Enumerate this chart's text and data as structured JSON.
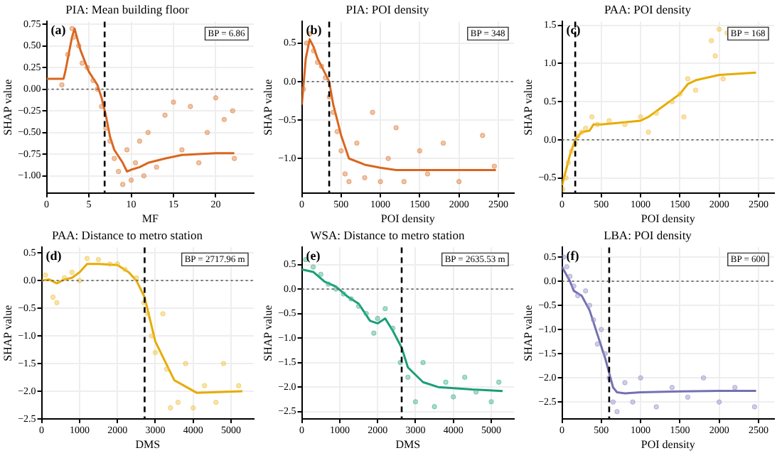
{
  "chart_data": [
    {
      "type": "scatter",
      "title": "PIA: Mean building floor",
      "xlabel": "MF",
      "ylabel": "SHAP value",
      "annotations": [
        "(a)",
        "BP = 6.86"
      ],
      "grid": true,
      "legend": false,
      "xlim": [
        0,
        24.5
      ],
      "xticks": [
        0,
        5,
        10,
        15,
        20
      ],
      "ylim": [
        -1.2,
        0.78
      ],
      "yticks": [
        {
          "value": -1,
          "label": "−1.00"
        },
        {
          "value": -0.75,
          "label": "−0.75"
        },
        {
          "value": -0.5,
          "label": "−0.50"
        },
        {
          "value": -0.25,
          "label": "−0.25"
        },
        {
          "value": 0,
          "label": "0.00"
        },
        {
          "value": 0.25,
          "label": "0.25"
        },
        {
          "value": 0.5,
          "label": "0.50"
        },
        {
          "value": 0.75,
          "label": "0.75"
        }
      ],
      "ref_lines": [
        {
          "axis": "x",
          "value": 6.86,
          "color": "#000000",
          "line_style": "dashed"
        },
        {
          "axis": "y",
          "value": 0,
          "color": "#666666",
          "line_style": "dotted"
        }
      ],
      "series": [
        {
          "marker": "circle",
          "color": "#e07b39",
          "x": [
            1.8,
            2.5,
            3,
            3.2,
            3.8,
            4.2,
            4.8,
            5.5,
            6,
            6.5,
            7,
            7.5,
            8,
            8.5,
            9,
            9.5,
            10,
            10.5,
            11,
            11.5,
            12,
            13,
            14,
            15,
            16,
            17,
            18,
            19,
            20,
            21,
            22,
            22.2
          ],
          "values": [
            0.05,
            0.4,
            0.7,
            0.6,
            0.5,
            0.3,
            0.25,
            0.1,
            0,
            -0.2,
            -0.45,
            -0.6,
            -0.8,
            -0.95,
            -1.1,
            -0.7,
            -1.05,
            -0.85,
            -0.6,
            -1,
            -0.5,
            -0.9,
            -0.3,
            -0.15,
            -0.7,
            -0.2,
            -0.85,
            -0.5,
            -0.1,
            -0.35,
            -0.25,
            -0.8
          ]
        },
        {
          "type": "line",
          "marker": "none",
          "color": "#d9661f",
          "x": [
            0,
            2,
            2.2,
            3,
            3.3,
            4,
            5,
            6,
            6.5,
            7,
            7.5,
            8,
            9,
            9.5,
            10,
            11,
            12,
            14,
            16,
            18,
            20,
            22.2
          ],
          "values": [
            0.12,
            0.12,
            0.2,
            0.6,
            0.7,
            0.45,
            0.2,
            0.05,
            -0.1,
            -0.3,
            -0.55,
            -0.7,
            -0.85,
            -0.95,
            -0.93,
            -0.9,
            -0.85,
            -0.8,
            -0.76,
            -0.75,
            -0.74,
            -0.74
          ]
        }
      ]
    },
    {
      "type": "scatter",
      "title": "PIA: POI density",
      "xlabel": "POI density",
      "ylabel": "SHAP value",
      "annotations": [
        "(b)",
        "BP = 348"
      ],
      "grid": true,
      "legend": false,
      "xlim": [
        0,
        2700
      ],
      "xticks": [
        0,
        500,
        1000,
        1500,
        2000,
        2500
      ],
      "ylim": [
        -1.45,
        0.78
      ],
      "yticks": [
        {
          "value": -1,
          "label": "−1.0"
        },
        {
          "value": -0.5,
          "label": "−0.5"
        },
        {
          "value": 0,
          "label": "0.0"
        },
        {
          "value": 0.5,
          "label": "0.5"
        }
      ],
      "ref_lines": [
        {
          "axis": "x",
          "value": 348,
          "color": "#000000",
          "line_style": "dashed"
        },
        {
          "axis": "y",
          "value": 0,
          "color": "#666666",
          "line_style": "dotted"
        }
      ],
      "series": [
        {
          "marker": "circle",
          "color": "#e07b39",
          "x": [
            20,
            60,
            100,
            150,
            200,
            250,
            300,
            350,
            400,
            450,
            500,
            550,
            600,
            700,
            800,
            900,
            1000,
            1100,
            1200,
            1300,
            1500,
            1600,
            1800,
            2000,
            2300,
            2450
          ],
          "values": [
            -0.1,
            0.5,
            0.62,
            0.4,
            0.25,
            0.2,
            0.05,
            -0.2,
            -0.4,
            -0.65,
            -0.9,
            -1.2,
            -1.3,
            -0.8,
            -1.25,
            -0.4,
            -1.3,
            -1,
            -0.6,
            -1.3,
            -0.9,
            -1.2,
            -0.8,
            -1.3,
            -0.7,
            -1.1
          ]
        },
        {
          "type": "line",
          "marker": "none",
          "color": "#d9661f",
          "x": [
            0,
            50,
            100,
            150,
            200,
            300,
            348,
            400,
            500,
            600,
            800,
            1000,
            1200,
            1500,
            2000,
            2470
          ],
          "values": [
            -0.3,
            0.3,
            0.55,
            0.45,
            0.3,
            0.1,
            0,
            -0.3,
            -0.7,
            -1,
            -1.08,
            -1.12,
            -1.15,
            -1.15,
            -1.15,
            -1.15
          ]
        }
      ]
    },
    {
      "type": "scatter",
      "title": "PAA: POI density",
      "xlabel": "POI density",
      "ylabel": "SHAP value",
      "annotations": [
        "(c)",
        "BP = 168"
      ],
      "grid": true,
      "legend": false,
      "xlim": [
        0,
        2700
      ],
      "xticks": [
        0,
        500,
        1000,
        1500,
        2000,
        2500
      ],
      "ylim": [
        -0.7,
        1.55
      ],
      "yticks": [
        {
          "value": -0.5,
          "label": "−0.5"
        },
        {
          "value": 0,
          "label": "0.0"
        },
        {
          "value": 0.5,
          "label": "0.5"
        },
        {
          "value": 1,
          "label": "1.0"
        },
        {
          "value": 1.5,
          "label": "1.5"
        }
      ],
      "ref_lines": [
        {
          "axis": "x",
          "value": 168,
          "color": "#000000",
          "line_style": "dashed"
        },
        {
          "axis": "y",
          "value": 0,
          "color": "#666666",
          "line_style": "dotted"
        }
      ],
      "series": [
        {
          "marker": "circle",
          "color": "#f0c040",
          "x": [
            10,
            50,
            80,
            120,
            168,
            200,
            250,
            300,
            380,
            450,
            600,
            800,
            1000,
            1100,
            1200,
            1400,
            1500,
            1550,
            1600,
            1700,
            1900,
            1950,
            2000,
            2050,
            2100
          ],
          "values": [
            -0.65,
            -0.5,
            -0.3,
            -0.15,
            -0.05,
            0.05,
            0.1,
            0.15,
            0.3,
            0.2,
            0.25,
            0.2,
            0.3,
            0.1,
            0.35,
            0.5,
            0.6,
            0.3,
            0.8,
            0.65,
            1.3,
            1.1,
            1.45,
            0.8,
            1.4
          ]
        },
        {
          "type": "line",
          "marker": "none",
          "color": "#e6ac00",
          "x": [
            0,
            50,
            100,
            168,
            250,
            350,
            400,
            500,
            700,
            1000,
            1100,
            1300,
            1500,
            1600,
            1700,
            2000,
            2470
          ],
          "values": [
            -0.6,
            -0.4,
            -0.2,
            0,
            0.1,
            0.12,
            0.2,
            0.2,
            0.22,
            0.25,
            0.3,
            0.45,
            0.6,
            0.73,
            0.78,
            0.85,
            0.88
          ]
        }
      ]
    },
    {
      "type": "scatter",
      "title": "PAA: Distance to metro station",
      "xlabel": "DMS",
      "ylabel": "SHAP value",
      "annotations": [
        "(d)",
        "BP = 2717.96 m"
      ],
      "grid": true,
      "legend": false,
      "xlim": [
        0,
        5600
      ],
      "xticks": [
        0,
        1000,
        2000,
        3000,
        4000,
        5000
      ],
      "ylim": [
        -2.5,
        0.6
      ],
      "yticks": [
        {
          "value": -2.5,
          "label": "−2.5"
        },
        {
          "value": -2,
          "label": "−2.0"
        },
        {
          "value": -1.5,
          "label": "−1.5"
        },
        {
          "value": -1,
          "label": "−1.0"
        },
        {
          "value": -0.5,
          "label": "−0.5"
        },
        {
          "value": 0,
          "label": "0.0"
        },
        {
          "value": 0.5,
          "label": "0.5"
        }
      ],
      "ref_lines": [
        {
          "axis": "x",
          "value": 2717.96,
          "color": "#000000",
          "line_style": "dashed"
        },
        {
          "axis": "y",
          "value": 0,
          "color": "#666666",
          "line_style": "dotted"
        }
      ],
      "series": [
        {
          "marker": "circle",
          "color": "#f0c040",
          "x": [
            100,
            300,
            400,
            600,
            800,
            1000,
            1200,
            1500,
            1800,
            2000,
            2200,
            2500,
            2700,
            2800,
            2900,
            3000,
            3200,
            3300,
            3400,
            3600,
            3800,
            4000,
            4300,
            4600,
            4800,
            5200
          ],
          "values": [
            0.1,
            -0.3,
            -0.4,
            0.05,
            0.15,
            0,
            0.4,
            0.38,
            0.3,
            0.3,
            0.2,
            0.05,
            -0.4,
            -0.6,
            -1,
            -1.3,
            -0.6,
            -1.6,
            -2.3,
            -2.2,
            -1.5,
            -2.3,
            -1.9,
            -2.2,
            -1.5,
            -1.9
          ]
        },
        {
          "type": "line",
          "marker": "none",
          "color": "#e6ac00",
          "x": [
            0,
            200,
            400,
            600,
            800,
            1000,
            1200,
            1500,
            2000,
            2300,
            2500,
            2718,
            3000,
            3500,
            4100,
            5300
          ],
          "values": [
            0,
            0.02,
            -0.05,
            0.02,
            0.05,
            0.15,
            0.3,
            0.3,
            0.28,
            0.15,
            0,
            -0.3,
            -1.1,
            -1.8,
            -2.03,
            -2
          ]
        }
      ]
    },
    {
      "type": "scatter",
      "title": "WSA: Distance to metro station",
      "xlabel": "DMS",
      "ylabel": "SHAP value",
      "annotations": [
        "(e)",
        "BP = 2635.53 m"
      ],
      "grid": true,
      "legend": false,
      "xlim": [
        0,
        5600
      ],
      "xticks": [
        0,
        1000,
        2000,
        3000,
        4000,
        5000
      ],
      "ylim": [
        -2.65,
        0.85
      ],
      "yticks": [
        {
          "value": -2.5,
          "label": "−2.5"
        },
        {
          "value": -2,
          "label": "−2.0"
        },
        {
          "value": -1.5,
          "label": "−1.5"
        },
        {
          "value": -1,
          "label": "−1.0"
        },
        {
          "value": -0.5,
          "label": "−0.5"
        },
        {
          "value": 0,
          "label": "0.0"
        },
        {
          "value": 0.5,
          "label": "0.5"
        }
      ],
      "ref_lines": [
        {
          "axis": "x",
          "value": 2635.53,
          "color": "#000000",
          "line_style": "dashed"
        },
        {
          "axis": "y",
          "value": 0,
          "color": "#666666",
          "line_style": "dotted"
        }
      ],
      "series": [
        {
          "marker": "circle",
          "color": "#40b08c",
          "x": [
            100,
            300,
            500,
            700,
            900,
            1100,
            1300,
            1500,
            1700,
            1900,
            2000,
            2200,
            2400,
            2600,
            2800,
            3000,
            3200,
            3500,
            3800,
            4000,
            4300,
            4600,
            5000,
            5200
          ],
          "values": [
            0.6,
            0.45,
            0.3,
            0.1,
            0,
            -0.1,
            -0.2,
            -0.35,
            -0.5,
            -0.9,
            -0.6,
            -0.4,
            -0.8,
            -1.5,
            -1.8,
            -2.3,
            -1.5,
            -2.4,
            -1.9,
            -2.2,
            -1.8,
            -2.1,
            -2.3,
            -1.9
          ]
        },
        {
          "type": "line",
          "marker": "none",
          "color": "#1a9e77",
          "x": [
            0,
            300,
            600,
            900,
            1200,
            1500,
            1800,
            2000,
            2200,
            2400,
            2636,
            2800,
            3200,
            3600,
            4500,
            5300
          ],
          "values": [
            0.4,
            0.35,
            0.15,
            0.05,
            -0.15,
            -0.3,
            -0.65,
            -0.7,
            -0.6,
            -0.85,
            -1.2,
            -1.6,
            -1.9,
            -2,
            -2.05,
            -2.08
          ]
        }
      ]
    },
    {
      "type": "scatter",
      "title": "LBA: POI density",
      "xlabel": "POI density",
      "ylabel": "SHAP value",
      "annotations": [
        "(f)",
        "BP = 600"
      ],
      "grid": true,
      "legend": false,
      "xlim": [
        0,
        2700
      ],
      "xticks": [
        0,
        500,
        1000,
        1500,
        2000,
        2500
      ],
      "ylim": [
        -2.85,
        0.7
      ],
      "yticks": [
        {
          "value": -2.5,
          "label": "−2.5"
        },
        {
          "value": -2,
          "label": "−2.0"
        },
        {
          "value": -1.5,
          "label": "−1.5"
        },
        {
          "value": -1,
          "label": "−1.0"
        },
        {
          "value": -0.5,
          "label": "−0.5"
        },
        {
          "value": 0,
          "label": "0.0"
        },
        {
          "value": 0.5,
          "label": "0.5"
        }
      ],
      "ref_lines": [
        {
          "axis": "x",
          "value": 600,
          "color": "#000000",
          "line_style": "dashed"
        },
        {
          "axis": "y",
          "value": 0,
          "color": "#666666",
          "line_style": "dotted"
        }
      ],
      "series": [
        {
          "marker": "circle",
          "color": "#9590c8",
          "x": [
            20,
            60,
            100,
            150,
            200,
            300,
            350,
            400,
            450,
            500,
            550,
            600,
            650,
            700,
            800,
            900,
            1000,
            1200,
            1400,
            1600,
            1800,
            2000,
            2200,
            2450
          ],
          "values": [
            0.5,
            0.3,
            0.1,
            -0.1,
            -0.3,
            -0.2,
            -0.5,
            -0.8,
            -1.3,
            -1,
            -1.5,
            -2,
            -2.5,
            -2.7,
            -2.1,
            -2.5,
            -2,
            -2.6,
            -2.2,
            -2.4,
            -2,
            -2.5,
            -2.2,
            -2.6
          ]
        },
        {
          "type": "line",
          "marker": "none",
          "color": "#7570b3",
          "x": [
            0,
            100,
            150,
            250,
            350,
            450,
            550,
            600,
            650,
            700,
            800,
            1000,
            1500,
            2000,
            2470
          ],
          "values": [
            0.3,
            0,
            -0.2,
            -0.3,
            -0.6,
            -1.1,
            -1.6,
            -1.9,
            -2.2,
            -2.3,
            -2.32,
            -2.3,
            -2.28,
            -2.27,
            -2.27
          ]
        }
      ]
    }
  ]
}
